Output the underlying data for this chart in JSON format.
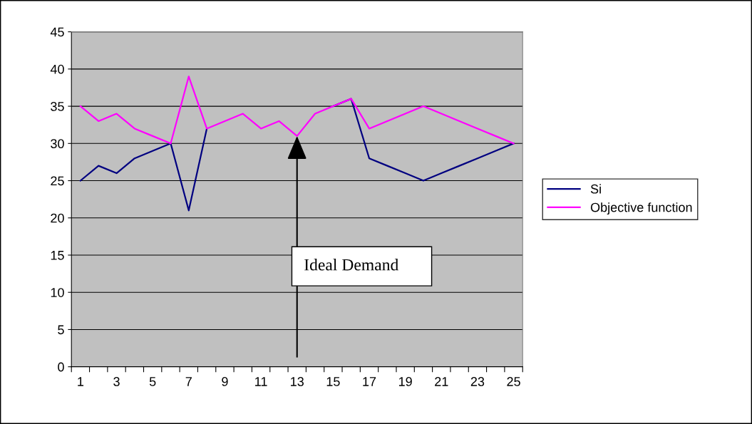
{
  "chart_data": {
    "type": "line",
    "categories": [
      "1",
      null,
      "3",
      null,
      "5",
      null,
      "7",
      null,
      "9",
      null,
      "11",
      null,
      "13",
      null,
      "15",
      null,
      "17",
      null,
      "19",
      null,
      "21",
      null,
      "23",
      null,
      "25"
    ],
    "series": [
      {
        "name": "Si",
        "color": "#000080",
        "values": [
          25,
          27,
          26,
          28,
          29,
          30,
          21,
          32,
          null,
          null,
          null,
          null,
          null,
          null,
          35,
          36,
          28,
          27,
          26,
          25,
          26,
          27,
          28,
          29,
          30
        ]
      },
      {
        "name": "Objective function",
        "color": "#ff00ff",
        "values": [
          35,
          33,
          34,
          32,
          31,
          30,
          39,
          32,
          33,
          34,
          32,
          33,
          31,
          34,
          35,
          36,
          32,
          33,
          34,
          35,
          34,
          33,
          32,
          31,
          30
        ]
      }
    ],
    "ylim": [
      0,
      45
    ],
    "yticks": [
      0,
      5,
      10,
      15,
      20,
      25,
      30,
      35,
      40,
      45
    ],
    "grid": "y",
    "legend": "right",
    "marker": "none",
    "line_style": "solid",
    "annotations": [
      {
        "text": "Ideal Demand",
        "x": "13",
        "y": 31
      }
    ]
  }
}
